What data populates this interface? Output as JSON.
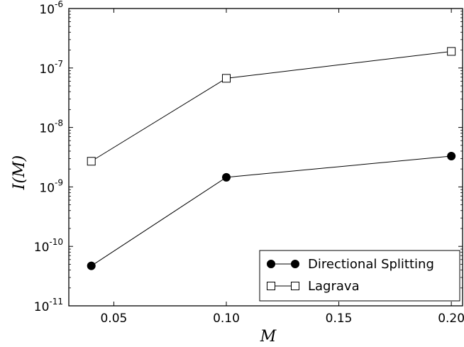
{
  "chart_data": {
    "type": "line",
    "xlabel": "M",
    "ylabel": "I(M)",
    "x": [
      0.04,
      0.1,
      0.2
    ],
    "xlim": [
      0.03,
      0.205
    ],
    "ylim": [
      1e-11,
      1e-06
    ],
    "y_scale": "log",
    "grid": false,
    "legend_position": "lower-right",
    "x_ticks": [
      {
        "value": 0.05,
        "label": "0.05"
      },
      {
        "value": 0.1,
        "label": "0.10"
      },
      {
        "value": 0.15,
        "label": "0.15"
      },
      {
        "value": 0.2,
        "label": "0.20"
      }
    ],
    "y_ticks": [
      {
        "exp": -11,
        "base": "10",
        "sup": "-11"
      },
      {
        "exp": -10,
        "base": "10",
        "sup": "-10"
      },
      {
        "exp": -9,
        "base": "10",
        "sup": "-9"
      },
      {
        "exp": -8,
        "base": "10",
        "sup": "-8"
      },
      {
        "exp": -7,
        "base": "10",
        "sup": "-7"
      },
      {
        "exp": -6,
        "base": "10",
        "sup": "-6"
      }
    ],
    "series": [
      {
        "name": "Directional Splitting",
        "marker": "filled-circle",
        "color": "#000000",
        "values": [
          4.7e-11,
          1.45e-09,
          3.3e-09
        ]
      },
      {
        "name": "Lagrava",
        "marker": "open-square",
        "color": "#000000",
        "values": [
          2.7e-09,
          6.7e-08,
          1.9e-07
        ]
      }
    ]
  }
}
